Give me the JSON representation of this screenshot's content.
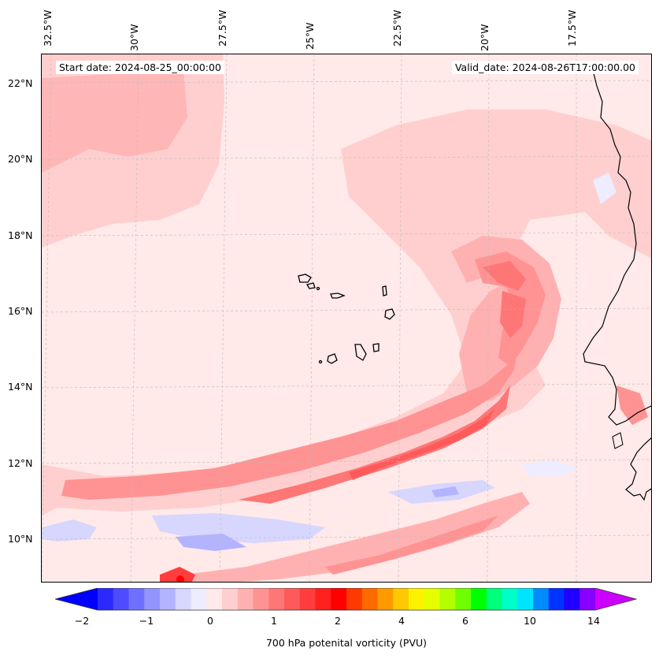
{
  "map": {
    "start_date_text": "Start date: 2024-08-25_00:00:00",
    "valid_date_text": "Valid_date: 2024-08-26T17:00:00.00",
    "field": "700 hPa potenital vorticity (PVU)",
    "longitude_labels": [
      "32.5°W",
      "30°W",
      "27.5°W",
      "25°W",
      "22.5°W",
      "20°W",
      "17.5°W"
    ],
    "latitude_labels": [
      "22°N",
      "20°N",
      "18°N",
      "16°N",
      "14°N",
      "12°N",
      "10°N"
    ],
    "gridlines": "dashed light gray",
    "coastline_color": "#000000"
  },
  "colorbar": {
    "title": "700 hPa potenital vorticity (PVU)",
    "tick_labels": [
      "−2",
      "−1",
      "0",
      "1",
      "2",
      "4",
      "6",
      "10",
      "14"
    ],
    "colors": [
      "#0000ff",
      "#2a2aff",
      "#4d4dff",
      "#7070ff",
      "#9494ff",
      "#b3b3ff",
      "#d6d6ff",
      "#ededff",
      "#ffe9e9",
      "#ffcfcf",
      "#ffb1b1",
      "#ff9393",
      "#ff7676",
      "#ff5a5a",
      "#ff3d3d",
      "#ff2020",
      "#ff0000",
      "#ff3a00",
      "#ff6a00",
      "#ff9900",
      "#ffc800",
      "#fff200",
      "#e6ff00",
      "#b3ff00",
      "#70ff00",
      "#00ff00",
      "#00ff7a",
      "#00ffc8",
      "#00e5ff",
      "#008cff",
      "#0033ff",
      "#2200ff",
      "#8800ff",
      "#cc00ff"
    ],
    "extend": "both"
  }
}
